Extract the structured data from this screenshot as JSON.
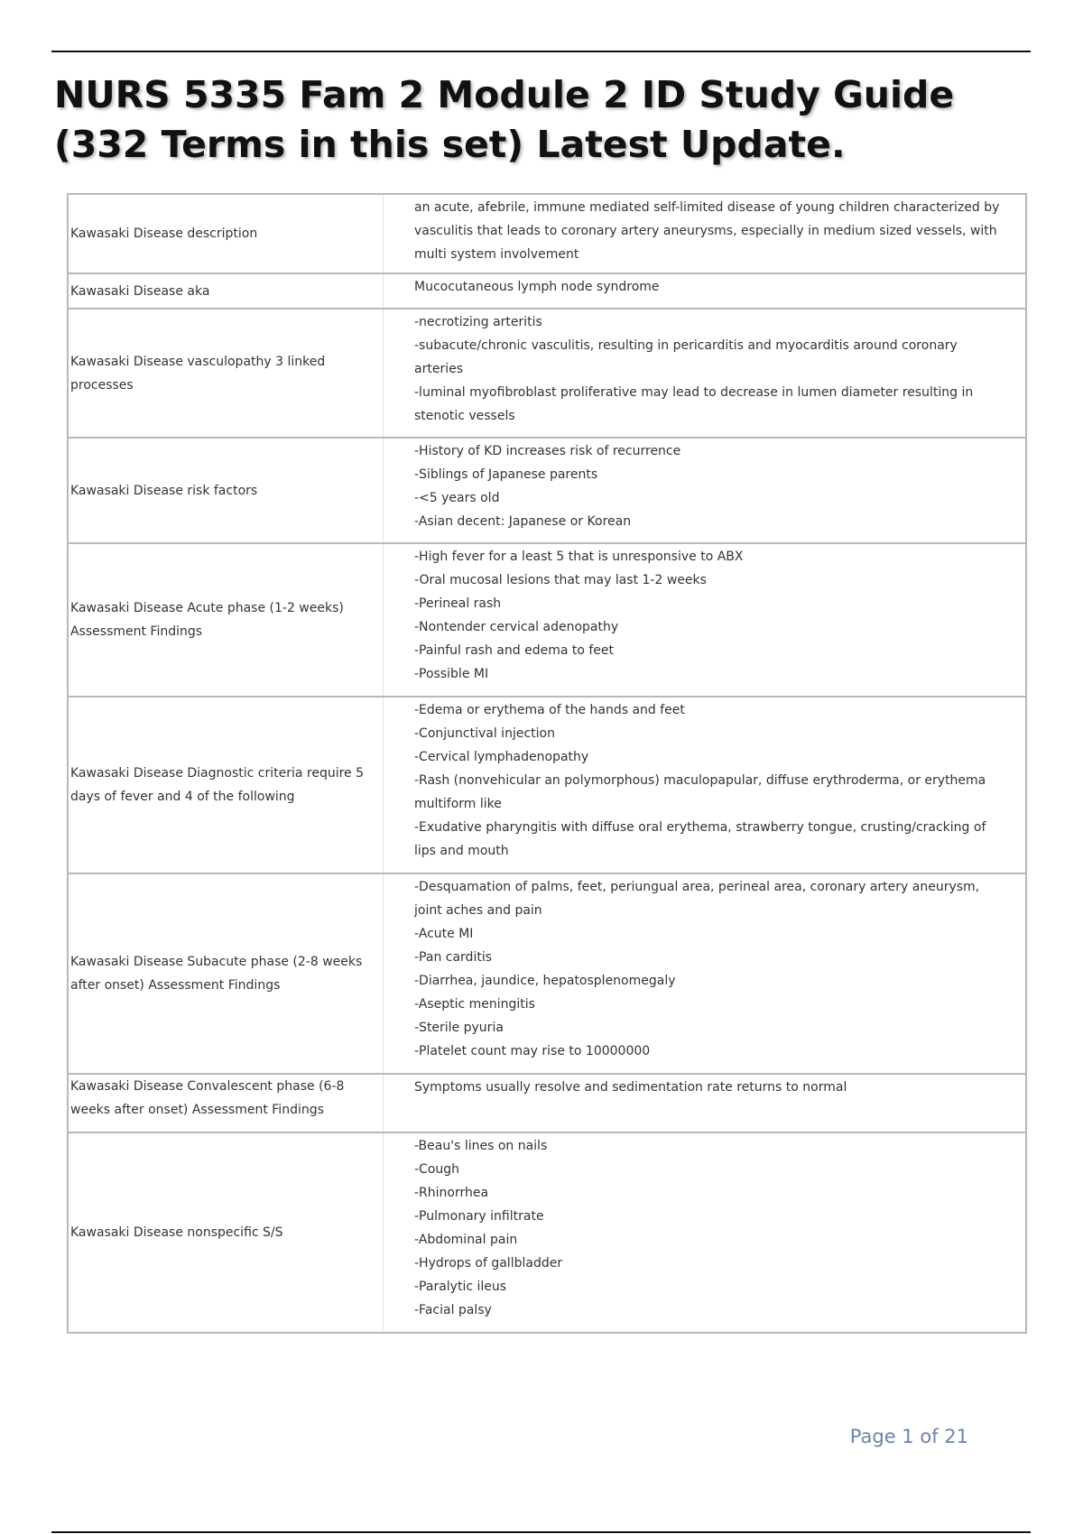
{
  "title": "NURS 5335 Fam 2 Module 2 ID Study Guide (332 Terms in this set) Latest Update.",
  "rows": [
    {
      "term": "Kawasaki Disease description",
      "definition": [
        "an acute, afebrile, immune mediated self-limited disease of young children characterized by vasculitis that leads to coronary artery aneurysms, especially in medium sized vessels, with multi system involvement"
      ]
    },
    {
      "term": "Kawasaki Disease aka",
      "definition": [
        "Mucocutaneous lymph node syndrome"
      ]
    },
    {
      "term": "Kawasaki Disease vasculopathy 3 linked processes",
      "definition": [
        "-necrotizing arteritis",
        "-subacute/chronic vasculitis, resulting in pericarditis and myocarditis around coronary arteries",
        "-luminal myofibroblast proliferative may lead to decrease in lumen diameter resulting in stenotic vessels"
      ]
    },
    {
      "term": "Kawasaki Disease risk factors",
      "definition": [
        "-History of KD increases risk of recurrence",
        "-Siblings of Japanese parents",
        "-<5 years old",
        "-Asian decent: Japanese or Korean"
      ]
    },
    {
      "term": "Kawasaki Disease Acute phase (1-2 weeks) Assessment Findings",
      "definition": [
        "-High fever for a least 5 that is unresponsive to ABX",
        "-Oral mucosal lesions that may last 1-2 weeks",
        "-Perineal rash",
        "-Nontender cervical adenopathy",
        "-Painful rash and edema to feet",
        "-Possible MI"
      ]
    },
    {
      "term": "Kawasaki Disease Diagnostic criteria require 5 days of fever and 4 of the following",
      "definition": [
        "-Edema or erythema of the hands and feet",
        "-Conjunctival injection",
        "-Cervical lymphadenopathy",
        "-Rash (nonvehicular an polymorphous) maculopapular, diffuse erythroderma, or erythema multiform like",
        "-Exudative pharyngitis with diffuse oral erythema, strawberry tongue, crusting/cracking of lips and mouth"
      ]
    },
    {
      "term": "Kawasaki Disease Subacute phase (2-8 weeks after onset) Assessment Findings",
      "definition": [
        "-Desquamation of palms, feet, periungual area, perineal area, coronary artery aneurysm, joint aches and pain",
        "-Acute MI",
        "-Pan carditis",
        "-Diarrhea, jaundice, hepatosplenomegaly",
        "-Aseptic meningitis",
        "-Sterile pyuria",
        "-Platelet count may rise to 10000000"
      ]
    },
    {
      "term": "Kawasaki Disease Convalescent phase (6-8 weeks after onset) Assessment Findings",
      "definition": [
        "Symptoms usually resolve and sedimentation rate returns to normal"
      ]
    },
    {
      "term": "Kawasaki Disease nonspecific S/S",
      "definition": [
        "-Beau's lines on nails",
        "-Cough",
        "-Rhinorrhea",
        "-Pulmonary infiltrate",
        "-Abdominal pain",
        "-Hydrops of gallbladder",
        "-Paralytic ileus",
        "-Facial palsy"
      ]
    }
  ],
  "footer": {
    "page_label": "Page 1 of 21"
  }
}
